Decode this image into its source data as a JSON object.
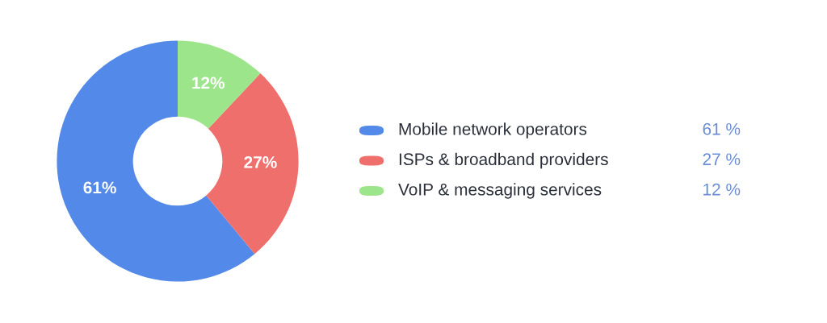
{
  "chart_data": {
    "type": "donut",
    "categories": [
      "Mobile network operators",
      "ISPs & broadband providers",
      "VoIP & messaging services"
    ],
    "values": [
      61,
      27,
      12
    ],
    "colors": [
      "#5389e8",
      "#ef6f6c",
      "#9de58a"
    ],
    "value_labels": [
      "61%",
      "27%",
      "12%"
    ],
    "annotations": [
      "61 %",
      "27 %",
      "12 %"
    ],
    "legend": "right"
  }
}
